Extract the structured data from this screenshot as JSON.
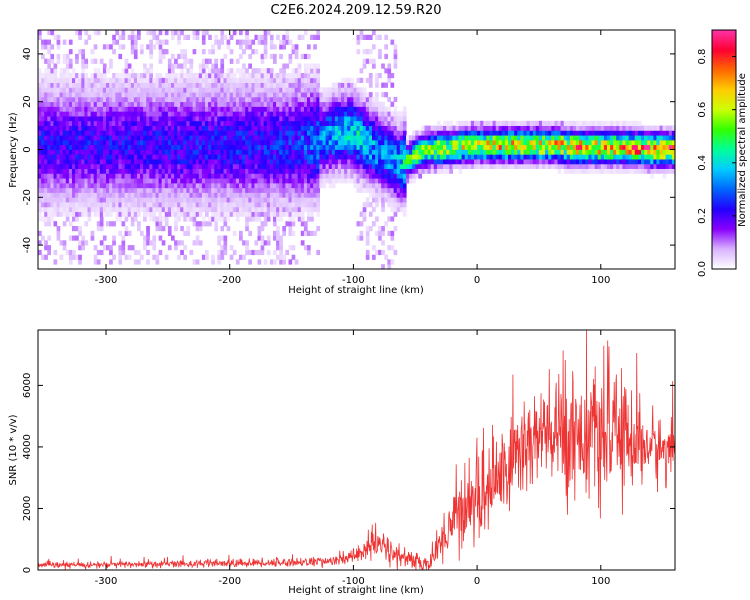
{
  "title": "C2E6.2024.209.12.59.R20",
  "colors": {
    "snr_line": "#ee3333",
    "frame": "#000000",
    "background": "#ffffff"
  },
  "chart_data": [
    {
      "type": "heatmap",
      "xlabel": "Height of straight line (km)",
      "ylabel": "Frequency (Hz)",
      "xlim": [
        -355,
        160
      ],
      "ylim": [
        -50,
        50
      ],
      "x_ticks": [
        -300,
        -200,
        -100,
        0,
        100
      ],
      "x_tick_labels": [
        "-300",
        "-200",
        "-100",
        "0",
        "100"
      ],
      "y_ticks": [
        -40,
        -20,
        0,
        20,
        40
      ],
      "y_tick_labels": [
        "-40",
        "-20",
        "0",
        "20",
        "40"
      ],
      "colorbar": {
        "label": "Normalized spectral amplitude",
        "range": [
          0,
          0.9
        ],
        "ticks": [
          0.0,
          0.2,
          0.4,
          0.6,
          0.8
        ],
        "tick_labels": [
          "0.0",
          "0.2",
          "0.4",
          "0.6",
          "0.8"
        ],
        "colormap": [
          "#ffffff",
          "#d9b3ff",
          "#8800ff",
          "#2200ff",
          "#0066ff",
          "#00ccff",
          "#00ff99",
          "#33ff00",
          "#ccff00",
          "#ffcc00",
          "#ff6600",
          "#ff0033",
          "#ff33aa"
        ]
      },
      "ridge_profile": {
        "x": [
          -355,
          -300,
          -200,
          -150,
          -130,
          -115,
          -105,
          -95,
          -85,
          -75,
          -65,
          -60,
          -50,
          -40,
          -20,
          0,
          20,
          40,
          60,
          80,
          100,
          120,
          140,
          160
        ],
        "center_freq_hz": [
          1,
          1,
          1,
          1,
          3,
          6,
          7,
          4,
          0,
          -3,
          -7,
          -6,
          -3,
          -1,
          0,
          1,
          1,
          1,
          1,
          0,
          0,
          0,
          -1,
          -1
        ],
        "peak_amplitude": [
          0.25,
          0.25,
          0.27,
          0.28,
          0.35,
          0.42,
          0.45,
          0.45,
          0.4,
          0.38,
          0.4,
          0.5,
          0.6,
          0.65,
          0.7,
          0.72,
          0.75,
          0.75,
          0.75,
          0.8,
          0.78,
          0.8,
          0.85,
          0.85
        ]
      }
    },
    {
      "type": "line",
      "xlabel": "Height of straight line (km)",
      "ylabel": "SNR (10 * v/v)",
      "xlim": [
        -355,
        160
      ],
      "ylim": [
        0,
        7800
      ],
      "x_ticks": [
        -300,
        -200,
        -100,
        0,
        100
      ],
      "x_tick_labels": [
        "-300",
        "-200",
        "-100",
        "0",
        "100"
      ],
      "y_ticks": [
        0,
        2000,
        4000,
        6000
      ],
      "y_tick_labels": [
        "0",
        "2000",
        "4000",
        "6000"
      ],
      "series": [
        {
          "x": [
            -355,
            -300,
            -250,
            -200,
            -160,
            -130,
            -110,
            -100,
            -90,
            -80,
            -70,
            -60,
            -50,
            -40,
            -35,
            -30,
            -20,
            -10,
            0,
            10,
            20,
            30,
            40,
            50,
            60,
            70,
            80,
            90,
            100,
            110,
            120,
            130,
            140,
            150,
            160
          ],
          "y": [
            150,
            170,
            200,
            210,
            240,
            270,
            300,
            450,
            700,
            850,
            600,
            400,
            250,
            200,
            400,
            900,
            1600,
            2100,
            2300,
            2700,
            3100,
            3700,
            4100,
            4300,
            4300,
            4400,
            4500,
            4400,
            4300,
            4300,
            4400,
            4100,
            4000,
            3900,
            3900
          ],
          "envelope": [
            120,
            130,
            140,
            150,
            160,
            170,
            200,
            300,
            500,
            700,
            500,
            400,
            300,
            300,
            500,
            800,
            1200,
            1500,
            1700,
            1800,
            1900,
            2000,
            2100,
            2100,
            2200,
            2300,
            2400,
            2300,
            2200,
            2200,
            2000,
            1700,
            1400,
            1200,
            1000
          ]
        }
      ]
    }
  ]
}
